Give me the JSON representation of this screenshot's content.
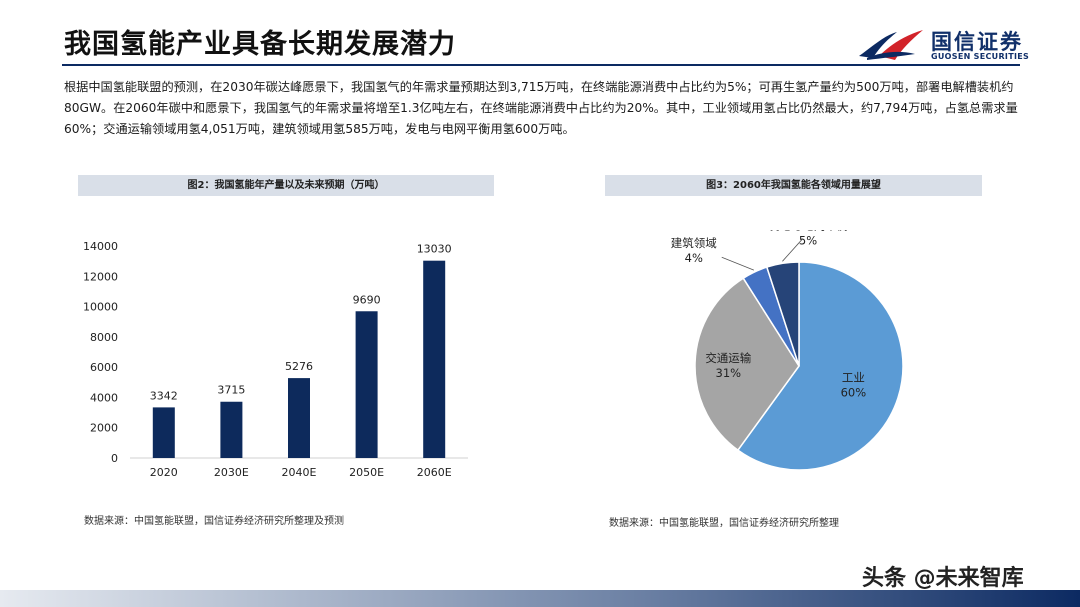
{
  "header": {
    "title": "我国氢能产业具备长期发展潜力",
    "logo_cn": "国信证券",
    "logo_en": "GUOSEN SECURITIES"
  },
  "intro_text": "根据中国氢能联盟的预测，在2030年碳达峰愿景下，我国氢气的年需求量预期达到3,715万吨，在终端能源消费中占比约为5%；可再生氢产量约为500万吨，部署电解槽装机约80GW。在2060年碳中和愿景下，我国氢气的年需求量将增至1.3亿吨左右，在终端能源消费中占比约为20%。其中，工业领域用氢占比仍然最大，约7,794万吨，占氢总需求量60%；交通运输领域用氢4,051万吨，建筑领域用氢585万吨，发电与电网平衡用氢600万吨。",
  "left_chart": {
    "header": "图2：我国氢能年产量以及未来预期（万吨）",
    "source": "数据来源：中国氢能联盟，国信证券经济研究所整理及预测"
  },
  "right_chart": {
    "header": "图3：2060年我国氢能各领域用量展望",
    "source": "数据来源：中国氢能联盟，国信证券经济研究所整理"
  },
  "watermark": "头条 @未来智库",
  "colors": {
    "bar": "#0d2a5c",
    "title_rule": "#0c2a62",
    "pie_industry": "#5b9bd5",
    "pie_transport": "#a5a5a5",
    "pie_building": "#4472c4",
    "pie_power": "#264478"
  },
  "chart_data": [
    {
      "type": "bar",
      "categories": [
        "2020",
        "2030E",
        "2040E",
        "2050E",
        "2060E"
      ],
      "values": [
        3342,
        3715,
        5276,
        9690,
        13030
      ],
      "ylim": [
        0,
        14000
      ],
      "yticks": [
        0,
        2000,
        4000,
        6000,
        8000,
        10000,
        12000,
        14000
      ],
      "grid": false
    },
    {
      "type": "pie",
      "slices": [
        {
          "label": "工业",
          "pct": "60%",
          "value": 60,
          "color_key": "pie_industry"
        },
        {
          "label": "交通运输",
          "pct": "31%",
          "value": 31,
          "color_key": "pie_transport"
        },
        {
          "label": "建筑领域",
          "pct": "4%",
          "value": 4,
          "color_key": "pie_building"
        },
        {
          "label": "发电与电网平衡",
          "pct": "5%",
          "value": 5,
          "color_key": "pie_power"
        }
      ]
    }
  ]
}
